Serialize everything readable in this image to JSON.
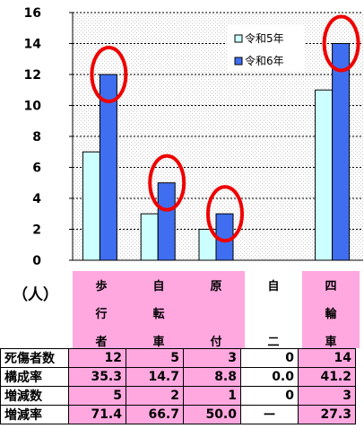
{
  "chart_data": {
    "type": "bar",
    "categories": [
      "歩行者",
      "自転車",
      "原付",
      "自二",
      "四輪車"
    ],
    "category_lines": [
      [
        "歩",
        "行",
        "者"
      ],
      [
        "自",
        "転",
        "車"
      ],
      [
        "原",
        "",
        "付"
      ],
      [
        "自",
        "",
        "二"
      ],
      [
        "四",
        "輪",
        "車"
      ]
    ],
    "series": [
      {
        "name": "令和5年",
        "values": [
          7,
          3,
          2,
          0,
          11
        ]
      },
      {
        "name": "令和6年",
        "values": [
          12,
          5,
          3,
          0,
          14
        ]
      }
    ],
    "ylim": [
      0,
      16
    ],
    "yticks": [
      0,
      2,
      4,
      6,
      8,
      10,
      12,
      14,
      16
    ],
    "unit": "（人）",
    "highlighted": [
      0,
      1,
      2,
      4
    ],
    "legend_position": "top-right"
  },
  "colors": {
    "r5": "#ccffff",
    "r6": "#3f6ff0",
    "circle": "#ee0000",
    "pink": "#ffa8e0"
  },
  "table": {
    "rows": [
      {
        "label": "死傷者数",
        "cells": [
          "12",
          "5",
          "3",
          "0",
          "14"
        ]
      },
      {
        "label": "構成率",
        "cells": [
          "35.3",
          "14.7",
          "8.8",
          "0.0",
          "41.2"
        ]
      },
      {
        "label": "増減数",
        "cells": [
          "5",
          "2",
          "1",
          "0",
          "3"
        ]
      },
      {
        "label": "増減率",
        "cells": [
          "71.4",
          "66.7",
          "50.0",
          "ー",
          "27.3"
        ]
      }
    ],
    "pink_columns": [
      0,
      1,
      2,
      4
    ]
  }
}
